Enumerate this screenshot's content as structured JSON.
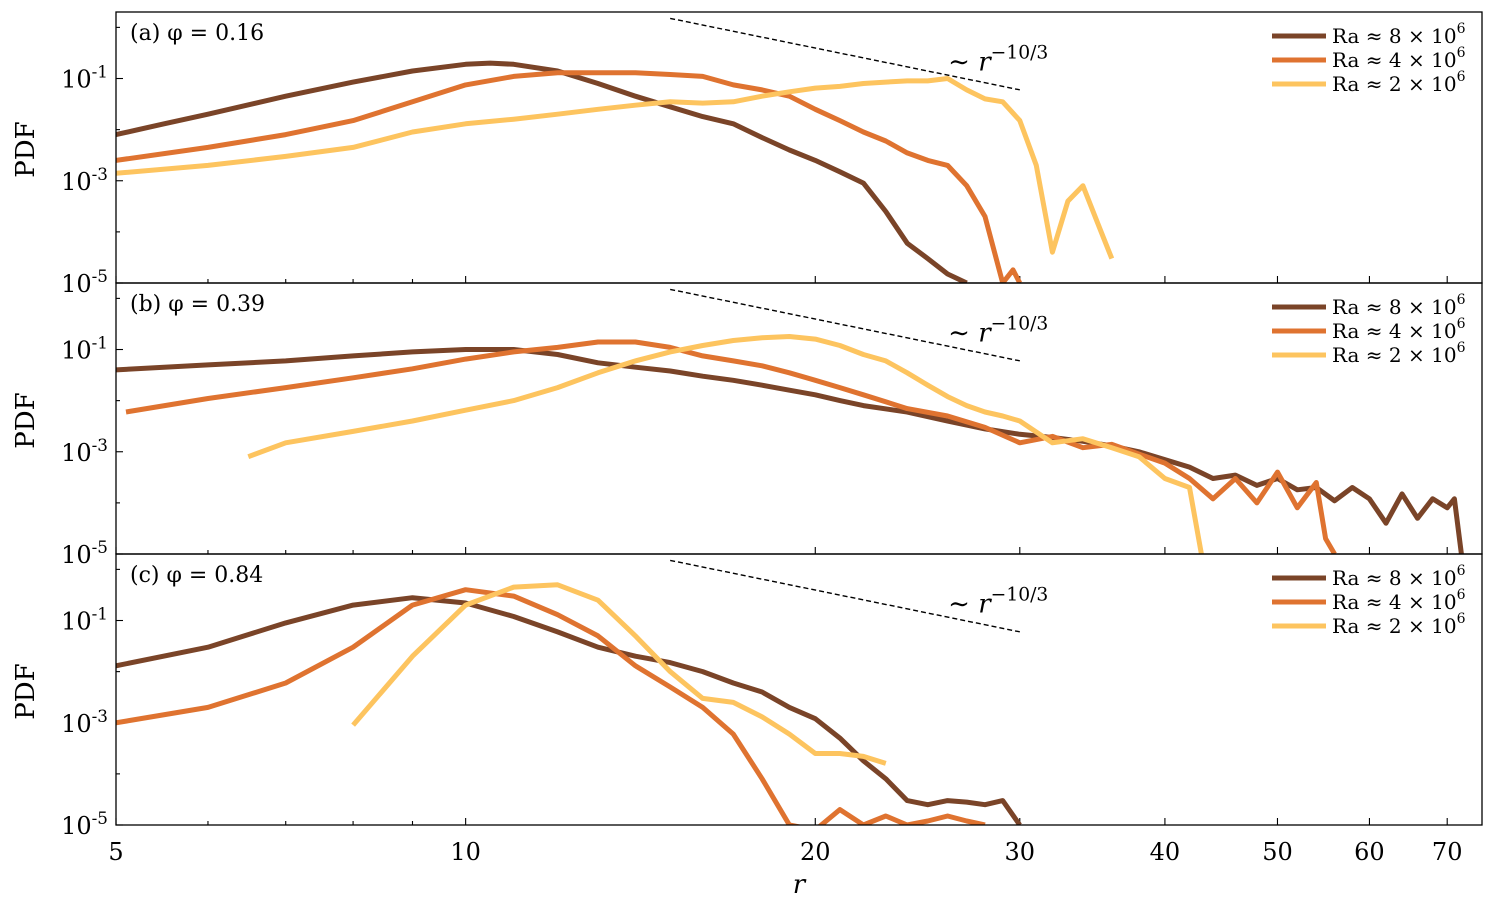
{
  "figure": {
    "xlabel": "r",
    "ylabel": "PDF",
    "colors": {
      "ra8e6": "#7a4428",
      "ra4e6": "#df7330",
      "ra2e6": "#fdc45f"
    },
    "legend": [
      "Ra ≈ 8 × 10^6",
      "Ra ≈ 4 × 10^6",
      "Ra ≈ 2 × 10^6"
    ],
    "slope_label": "∼ r^−10/3"
  },
  "chart_data": [
    {
      "type": "line",
      "panel_label": "(a) φ = 0.16",
      "xscale": "log",
      "yscale": "log",
      "xlim": [
        5,
        75
      ],
      "ylim": [
        1e-05,
        2
      ],
      "xticks": [
        5,
        10,
        20,
        30,
        40,
        50,
        60,
        70
      ],
      "yticks": [
        1e-05,
        0.001,
        0.1
      ],
      "ytick_labels": [
        "10^-5",
        "10^-3",
        "10^-1"
      ],
      "legend_position": "top-right",
      "reference_line": {
        "x": [
          15,
          30
        ],
        "y": [
          1.5,
          0.06
        ],
        "label": "∼ r^−10/3"
      },
      "series": [
        {
          "name": "Ra ≈ 8 × 10^6",
          "color": "#7a4428",
          "x": [
            5,
            5.5,
            6,
            7,
            8,
            9,
            10,
            10.5,
            11,
            12,
            13,
            14,
            15,
            16,
            17,
            18,
            19,
            20,
            21,
            22,
            23,
            24,
            25,
            26,
            27
          ],
          "y": [
            0.008,
            0.013,
            0.02,
            0.045,
            0.085,
            0.14,
            0.19,
            0.2,
            0.19,
            0.14,
            0.08,
            0.045,
            0.028,
            0.018,
            0.013,
            0.007,
            0.004,
            0.0025,
            0.0015,
            0.0009,
            0.00025,
            6e-05,
            3e-05,
            1.5e-05,
            1e-05
          ]
        },
        {
          "name": "Ra ≈ 4 × 10^6",
          "color": "#df7330",
          "x": [
            5,
            6,
            7,
            8,
            9,
            10,
            11,
            12,
            13,
            14,
            15,
            16,
            17,
            18,
            19,
            20,
            21,
            22,
            23,
            24,
            25,
            26,
            27,
            28,
            29,
            29.6,
            30
          ],
          "y": [
            0.0025,
            0.0045,
            0.008,
            0.015,
            0.035,
            0.075,
            0.11,
            0.13,
            0.13,
            0.13,
            0.12,
            0.11,
            0.075,
            0.06,
            0.045,
            0.025,
            0.015,
            0.009,
            0.006,
            0.0035,
            0.0025,
            0.002,
            0.0008,
            0.0002,
            1e-05,
            1.8e-05,
            1e-05
          ]
        },
        {
          "name": "Ra ≈ 2 × 10^6",
          "color": "#fdc45f",
          "x": [
            5,
            6,
            7,
            8,
            9,
            10,
            11,
            12,
            13,
            14,
            15,
            16,
            17,
            18,
            19,
            20,
            21,
            22,
            23,
            24,
            25,
            26,
            27,
            28,
            29,
            30,
            31,
            32,
            33,
            34,
            35,
            36
          ],
          "y": [
            0.0014,
            0.002,
            0.003,
            0.0045,
            0.009,
            0.013,
            0.016,
            0.02,
            0.025,
            0.03,
            0.035,
            0.033,
            0.035,
            0.045,
            0.055,
            0.065,
            0.07,
            0.08,
            0.085,
            0.09,
            0.09,
            0.1,
            0.06,
            0.04,
            0.035,
            0.015,
            0.002,
            4e-05,
            0.0004,
            0.0008,
            0.00015,
            3e-05
          ]
        }
      ]
    },
    {
      "type": "line",
      "panel_label": "(b) φ = 0.39",
      "xscale": "log",
      "yscale": "log",
      "xlim": [
        5,
        75
      ],
      "ylim": [
        1e-05,
        2
      ],
      "xticks": [
        5,
        10,
        20,
        30,
        40,
        50,
        60,
        70
      ],
      "yticks": [
        1e-05,
        0.001,
        0.1
      ],
      "ytick_labels": [
        "10^-5",
        "10^-3",
        "10^-1"
      ],
      "legend_position": "top-right",
      "reference_line": {
        "x": [
          15,
          30
        ],
        "y": [
          1.5,
          0.06
        ],
        "label": "∼ r^−10/3"
      },
      "series": [
        {
          "name": "Ra ≈ 8 × 10^6",
          "color": "#7a4428",
          "x": [
            5,
            6,
            7,
            8,
            9,
            10,
            11,
            12,
            13,
            14,
            15,
            16,
            17,
            18,
            19,
            20,
            21,
            22,
            24,
            26,
            28,
            30,
            32,
            34,
            36,
            38,
            40,
            42,
            44,
            46,
            48,
            50,
            52,
            54,
            56,
            58,
            60,
            62,
            64,
            66,
            68,
            70,
            71,
            72
          ],
          "y": [
            0.04,
            0.05,
            0.06,
            0.075,
            0.09,
            0.1,
            0.1,
            0.08,
            0.055,
            0.045,
            0.038,
            0.03,
            0.025,
            0.02,
            0.016,
            0.013,
            0.01,
            0.008,
            0.006,
            0.004,
            0.0028,
            0.0022,
            0.0019,
            0.0016,
            0.0013,
            0.001,
            0.0007,
            0.0005,
            0.0003,
            0.00035,
            0.00022,
            0.0003,
            0.00018,
            0.0002,
            0.00011,
            0.0002,
            0.00012,
            4e-05,
            0.00015,
            5e-05,
            0.00012,
            8e-05,
            0.00012,
            1e-05
          ]
        },
        {
          "name": "Ra ≈ 4 × 10^6",
          "color": "#df7330",
          "x": [
            5.1,
            6,
            7,
            8,
            9,
            10,
            11,
            12,
            13,
            14,
            15,
            16,
            17,
            18,
            19,
            20,
            21,
            22,
            24,
            26,
            28,
            30,
            32,
            34,
            36,
            38,
            40,
            42,
            44,
            46,
            48,
            50,
            52,
            54,
            55,
            56
          ],
          "y": [
            0.006,
            0.011,
            0.018,
            0.028,
            0.042,
            0.065,
            0.09,
            0.11,
            0.14,
            0.14,
            0.11,
            0.075,
            0.06,
            0.048,
            0.035,
            0.025,
            0.018,
            0.013,
            0.007,
            0.005,
            0.003,
            0.0015,
            0.002,
            0.0012,
            0.0014,
            0.0009,
            0.0006,
            0.0003,
            0.00012,
            0.0003,
            0.0001,
            0.0004,
            8e-05,
            0.00025,
            2e-05,
            1e-05
          ]
        },
        {
          "name": "Ra ≈ 2 × 10^6",
          "color": "#fdc45f",
          "x": [
            6.5,
            7,
            8,
            9,
            10,
            11,
            12,
            13,
            14,
            15,
            16,
            17,
            18,
            19,
            20,
            21,
            22,
            23,
            24,
            25,
            26,
            27,
            28,
            29,
            30,
            32,
            34,
            36,
            38,
            40,
            42,
            43
          ],
          "y": [
            0.0008,
            0.0015,
            0.0025,
            0.004,
            0.0065,
            0.01,
            0.018,
            0.035,
            0.06,
            0.09,
            0.12,
            0.15,
            0.17,
            0.18,
            0.16,
            0.12,
            0.08,
            0.06,
            0.035,
            0.02,
            0.012,
            0.008,
            0.006,
            0.005,
            0.004,
            0.0015,
            0.0018,
            0.0012,
            0.0008,
            0.0003,
            0.0002,
            1e-05
          ]
        }
      ]
    },
    {
      "type": "line",
      "panel_label": "(c) φ = 0.84",
      "xscale": "log",
      "yscale": "log",
      "xlim": [
        5,
        75
      ],
      "ylim": [
        1e-05,
        2
      ],
      "xticks": [
        5,
        10,
        20,
        30,
        40,
        50,
        60,
        70
      ],
      "yticks": [
        1e-05,
        0.001,
        0.1
      ],
      "ytick_labels": [
        "10^-5",
        "10^-3",
        "10^-1"
      ],
      "legend_position": "top-right",
      "reference_line": {
        "x": [
          15,
          30
        ],
        "y": [
          1.5,
          0.06
        ],
        "label": "∼ r^−10/3"
      },
      "series": [
        {
          "name": "Ra ≈ 8 × 10^6",
          "color": "#7a4428",
          "x": [
            5,
            6,
            7,
            8,
            9,
            10,
            11,
            12,
            13,
            14,
            15,
            16,
            17,
            18,
            19,
            20,
            21,
            22,
            23,
            24,
            25,
            26,
            27,
            28,
            29,
            30
          ],
          "y": [
            0.013,
            0.03,
            0.09,
            0.2,
            0.28,
            0.22,
            0.12,
            0.06,
            0.03,
            0.02,
            0.015,
            0.01,
            0.006,
            0.004,
            0.002,
            0.0012,
            0.0005,
            0.00018,
            8e-05,
            3e-05,
            2.5e-05,
            3e-05,
            2.8e-05,
            2.5e-05,
            3e-05,
            1e-05
          ]
        },
        {
          "name": "Ra ≈ 4 × 10^6",
          "color": "#df7330",
          "x": [
            5,
            6,
            7,
            8,
            9,
            10,
            11,
            12,
            13,
            14,
            15,
            16,
            17,
            18,
            19,
            20,
            21,
            22,
            23,
            24,
            25,
            26,
            27,
            28
          ],
          "y": [
            0.001,
            0.002,
            0.006,
            0.03,
            0.2,
            0.4,
            0.3,
            0.13,
            0.05,
            0.013,
            0.005,
            0.002,
            0.0006,
            8e-05,
            1e-05,
            8e-06,
            2e-05,
            1e-05,
            1.5e-05,
            1e-05,
            1.2e-05,
            1.5e-05,
            1.2e-05,
            1e-05
          ]
        },
        {
          "name": "Ra ≈ 2 × 10^6",
          "color": "#fdc45f",
          "x": [
            8,
            9,
            10,
            11,
            12,
            13,
            14,
            15,
            16,
            17,
            18,
            19,
            20,
            21,
            22,
            23
          ],
          "y": [
            0.0009,
            0.02,
            0.2,
            0.45,
            0.5,
            0.25,
            0.05,
            0.01,
            0.003,
            0.0025,
            0.0013,
            0.0006,
            0.00025,
            0.00025,
            0.00022,
            0.00016
          ]
        }
      ]
    }
  ]
}
